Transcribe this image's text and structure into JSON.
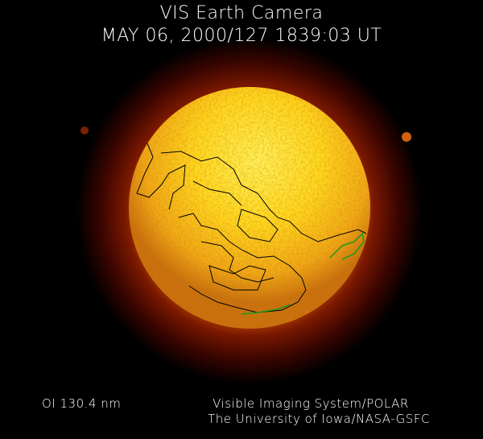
{
  "header": {
    "title": "VIS Earth Camera",
    "datetime": "MAY 06, 2000/127 1839:03 UT"
  },
  "footer": {
    "filter": "OI  130.4 nm",
    "credit_line1": "Visible Imaging System/POLAR",
    "credit_line2": "The University of Iowa/NASA-GSFC"
  },
  "colors": {
    "background": "#000000",
    "disk_core": "#ffe83a",
    "disk_edge": "#d88a10",
    "halo": "#8a1a00",
    "coastline": "#000000",
    "aurora_overlay": "#1a9a1a"
  }
}
